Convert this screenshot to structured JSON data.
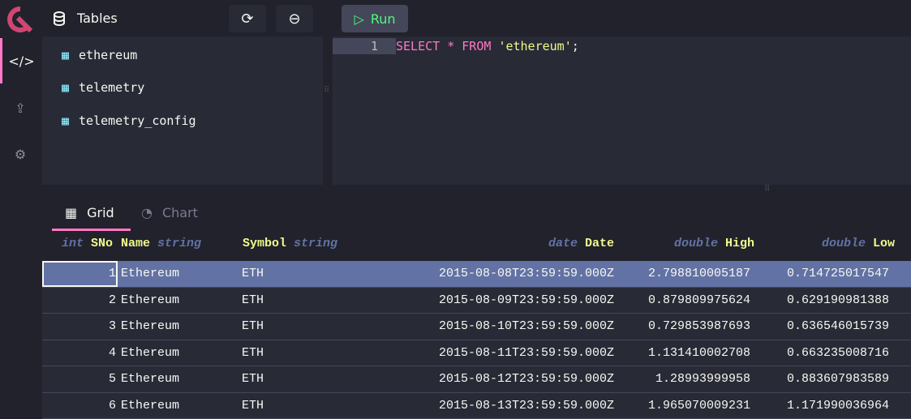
{
  "topbar": {
    "title": "Tables",
    "run_label": "Run",
    "accent": "#ff79c6"
  },
  "sidebar": {
    "items": [
      "code-icon",
      "upload-icon",
      "gear-icon"
    ]
  },
  "tables": [
    "ethereum",
    "telemetry",
    "telemetry_config"
  ],
  "editor": {
    "line_number": "1",
    "query": {
      "kw1": "SELECT",
      "star": "*",
      "kw2": "FROM",
      "table": "'ethereum'",
      "end": ";"
    }
  },
  "results": {
    "tabs": [
      {
        "label": "Grid",
        "active": true
      },
      {
        "label": "Chart",
        "active": false
      }
    ],
    "columns": [
      {
        "type": "int",
        "name": "SNo"
      },
      {
        "type": "string",
        "name": "Name"
      },
      {
        "type": "string",
        "name": "Symbol"
      },
      {
        "type": "date",
        "name": "Date"
      },
      {
        "type": "double",
        "name": "High"
      },
      {
        "type": "double",
        "name": "Low"
      }
    ],
    "rows": [
      [
        "1",
        "Ethereum",
        "ETH",
        "2015-08-08T23:59:59.000Z",
        "2.798810005187",
        "0.714725017547"
      ],
      [
        "2",
        "Ethereum",
        "ETH",
        "2015-08-09T23:59:59.000Z",
        "0.879809975624",
        "0.629190981388"
      ],
      [
        "3",
        "Ethereum",
        "ETH",
        "2015-08-10T23:59:59.000Z",
        "0.729853987693",
        "0.636546015739"
      ],
      [
        "4",
        "Ethereum",
        "ETH",
        "2015-08-11T23:59:59.000Z",
        "1.131410002708",
        "0.663235008716"
      ],
      [
        "5",
        "Ethereum",
        "ETH",
        "2015-08-12T23:59:59.000Z",
        "1.28993999958",
        "0.883607983589"
      ],
      [
        "6",
        "Ethereum",
        "ETH",
        "2015-08-13T23:59:59.000Z",
        "1.965070009231",
        "1.171990036964"
      ]
    ]
  }
}
